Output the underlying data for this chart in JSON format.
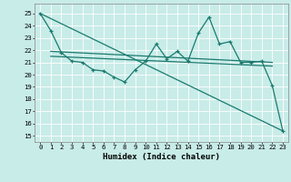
{
  "xlabel": "Humidex (Indice chaleur)",
  "background_color": "#c8ece8",
  "grid_color": "#ffffff",
  "line_color": "#1a7a6e",
  "xlim": [
    -0.5,
    23.5
  ],
  "ylim": [
    14.5,
    25.8
  ],
  "yticks": [
    15,
    16,
    17,
    18,
    19,
    20,
    21,
    22,
    23,
    24,
    25
  ],
  "xticks": [
    0,
    1,
    2,
    3,
    4,
    5,
    6,
    7,
    8,
    9,
    10,
    11,
    12,
    13,
    14,
    15,
    16,
    17,
    18,
    19,
    20,
    21,
    22,
    23
  ],
  "series1": [
    25.0,
    23.6,
    21.8,
    21.1,
    21.0,
    20.4,
    20.3,
    19.8,
    19.4,
    20.4,
    21.1,
    22.5,
    21.3,
    21.9,
    21.1,
    23.4,
    24.7,
    22.5,
    22.7,
    21.0,
    21.0,
    21.1,
    19.1,
    15.4
  ],
  "line2_x": [
    0,
    23
  ],
  "line2_y": [
    25.0,
    15.4
  ],
  "line3_x": [
    1,
    22
  ],
  "line3_y": [
    21.9,
    21.0
  ],
  "line4_x": [
    1,
    22
  ],
  "line4_y": [
    21.5,
    20.7
  ]
}
